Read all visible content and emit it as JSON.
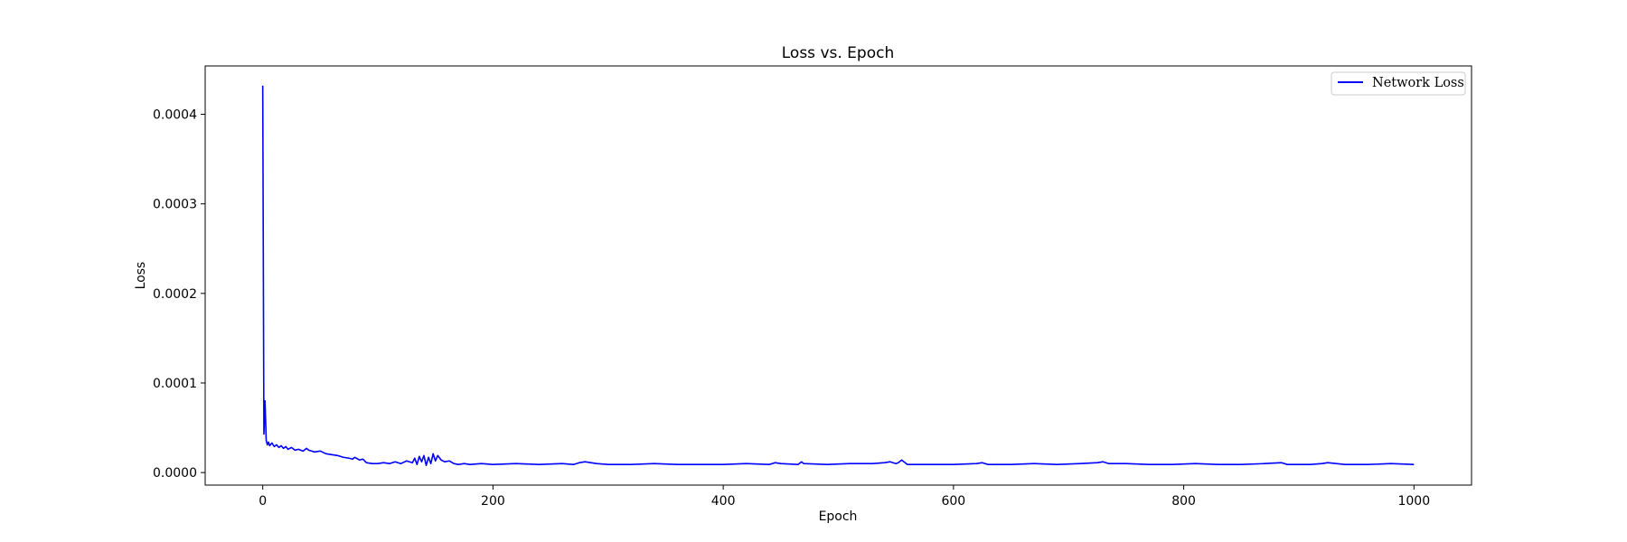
{
  "chart_data": {
    "type": "line",
    "title": "Loss vs. Epoch",
    "xlabel": "Epoch",
    "ylabel": "Loss",
    "xlim": [
      -50,
      1050
    ],
    "ylim": [
      -1.4e-05,
      0.000454
    ],
    "xticks": [
      0,
      200,
      400,
      600,
      800,
      1000
    ],
    "xtick_labels": [
      "0",
      "200",
      "400",
      "600",
      "800",
      "1000"
    ],
    "yticks": [
      0,
      0.0001,
      0.0002,
      0.0003,
      0.0004
    ],
    "ytick_labels": [
      "0.0000",
      "0.0001",
      "0.0002",
      "0.0003",
      "0.0004"
    ],
    "grid": false,
    "legend": {
      "position": "top-right",
      "entries": [
        "Network Loss"
      ]
    },
    "series": [
      {
        "name": "Network Loss",
        "color": "#0000ff",
        "x": [
          0,
          1,
          2,
          3,
          4,
          5,
          6,
          8,
          10,
          12,
          14,
          16,
          18,
          20,
          22,
          25,
          28,
          31,
          35,
          38,
          40,
          45,
          50,
          55,
          60,
          65,
          70,
          75,
          78,
          80,
          84,
          87,
          90,
          95,
          100,
          105,
          110,
          115,
          120,
          125,
          130,
          132,
          134,
          136,
          138,
          140,
          142,
          144,
          146,
          148,
          150,
          152,
          155,
          158,
          162,
          166,
          170,
          175,
          180,
          190,
          200,
          220,
          240,
          260,
          270,
          275,
          280,
          285,
          290,
          300,
          320,
          340,
          360,
          380,
          400,
          420,
          440,
          445,
          450,
          465,
          468,
          470,
          490,
          510,
          530,
          540,
          545,
          550,
          552,
          555,
          560,
          580,
          600,
          620,
          625,
          630,
          650,
          670,
          690,
          710,
          725,
          730,
          735,
          750,
          770,
          790,
          810,
          830,
          850,
          870,
          885,
          890,
          910,
          920,
          925,
          940,
          960,
          980,
          1000
        ],
        "values": [
          0.000432,
          4.3e-05,
          8e-05,
          3.6e-05,
          3.1e-05,
          3.4e-05,
          3e-05,
          3.3e-05,
          2.9e-05,
          3.1e-05,
          2.8e-05,
          3e-05,
          2.7e-05,
          2.9e-05,
          2.6e-05,
          2.8e-05,
          2.5e-05,
          2.6e-05,
          2.4e-05,
          2.7e-05,
          2.5e-05,
          2.3e-05,
          2.4e-05,
          2.1e-05,
          2e-05,
          1.9e-05,
          1.7e-05,
          1.6e-05,
          1.5e-05,
          1.7e-05,
          1.4e-05,
          1.5e-05,
          1.1e-05,
          1e-05,
          1e-05,
          1.1e-05,
          1e-05,
          1.2e-05,
          1e-05,
          1.3e-05,
          1.1e-05,
          1.6e-05,
          9e-06,
          1.8e-05,
          1.2e-05,
          1.9e-05,
          8e-06,
          1.7e-05,
          1e-05,
          2.1e-05,
          1.3e-05,
          1.9e-05,
          1.4e-05,
          1.2e-05,
          1.3e-05,
          1e-05,
          9e-06,
          1e-05,
          9e-06,
          1e-05,
          9e-06,
          1e-05,
          9e-06,
          1e-05,
          9e-06,
          1.1e-05,
          1.2e-05,
          1.1e-05,
          1e-05,
          9e-06,
          9e-06,
          1e-05,
          9e-06,
          9e-06,
          9e-06,
          1e-05,
          9e-06,
          1.1e-05,
          1e-05,
          9e-06,
          1.2e-05,
          1e-05,
          9e-06,
          1e-05,
          1e-05,
          1.1e-05,
          1.2e-05,
          1e-05,
          1.1e-05,
          1.4e-05,
          9e-06,
          9e-06,
          9e-06,
          1e-05,
          1.1e-05,
          9e-06,
          9e-06,
          1e-05,
          9e-06,
          1e-05,
          1.1e-05,
          1.2e-05,
          1e-05,
          1e-05,
          9e-06,
          9e-06,
          1e-05,
          9e-06,
          9e-06,
          1e-05,
          1.1e-05,
          9e-06,
          9e-06,
          1e-05,
          1.1e-05,
          9e-06,
          9e-06,
          1e-05,
          9e-06
        ]
      }
    ]
  }
}
